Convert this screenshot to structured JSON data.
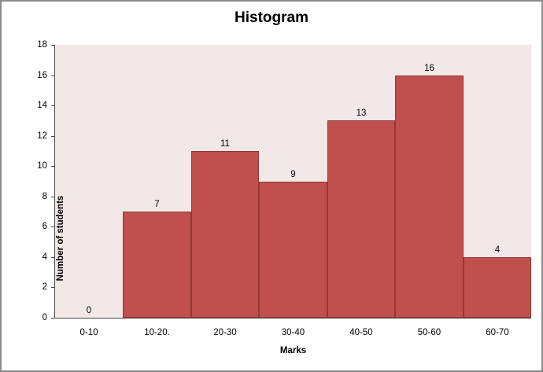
{
  "chart_data": {
    "type": "bar",
    "subtype": "histogram",
    "title": "Histogram",
    "categories": [
      "0-10",
      "10-20.",
      "20-30",
      "30-40",
      "40-50",
      "50-60",
      "60-70"
    ],
    "values": [
      0,
      7,
      11,
      9,
      13,
      16,
      4
    ],
    "xlabel": "Marks",
    "ylabel": "Number of students",
    "ylim": [
      0,
      18
    ],
    "yticks": [
      0,
      2,
      4,
      6,
      8,
      10,
      12,
      14,
      16,
      18
    ],
    "grid": false,
    "legend": false,
    "data_labels": true,
    "gap_width_percent": 0,
    "colors": {
      "bar_fill": "#c0504d",
      "bar_border": "#963634",
      "plot_bg": "#f2e8e7",
      "chart_bg": "#ffffff",
      "chart_border": "#8a8a8a",
      "axis_line": "#4a4a4a",
      "text": "#000000"
    }
  }
}
